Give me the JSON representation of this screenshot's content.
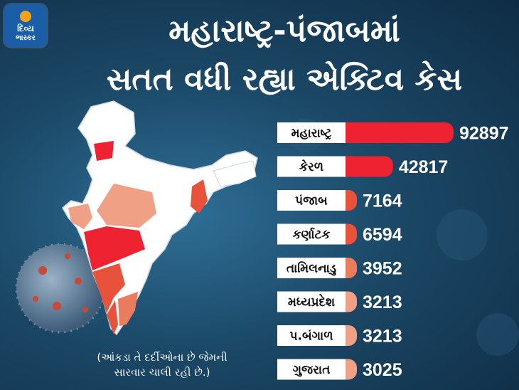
{
  "logo": {
    "line1": "દિવ્ય",
    "line2": "ભાસ્કર"
  },
  "title": {
    "line1": "મહારાષ્ટ્ર-પંજાબમાં",
    "line2": "સતત વધી રહ્યા એક્ટિવ કેસ"
  },
  "note": {
    "line1": "(આંકડા તે દર્દીઓના છે જેમની",
    "line2": "સારવાર ચાલી રહી છે.)"
  },
  "colors": {
    "max": "#ee2230",
    "high": "#e8513a",
    "mid": "#e97b5f",
    "low": "#f0a085",
    "label_bg": "#ffffff",
    "text": "#111111"
  },
  "chart_data": {
    "type": "bar",
    "orientation": "horizontal",
    "categories": [
      "મહારાષ્ટ્ર",
      "કેરળ",
      "પંજાબ",
      "કર્ણાટક",
      "તામિલનાડુ",
      "મધ્યપ્રદેશ",
      "પ.બંગાળ",
      "ગુજરાત"
    ],
    "values": [
      92897,
      42817,
      7164,
      6594,
      3952,
      3213,
      3213,
      3025
    ],
    "value_labels": [
      "92897",
      "42817",
      "7164",
      "6594",
      "3952",
      "3213",
      "3213",
      "3025"
    ]
  }
}
